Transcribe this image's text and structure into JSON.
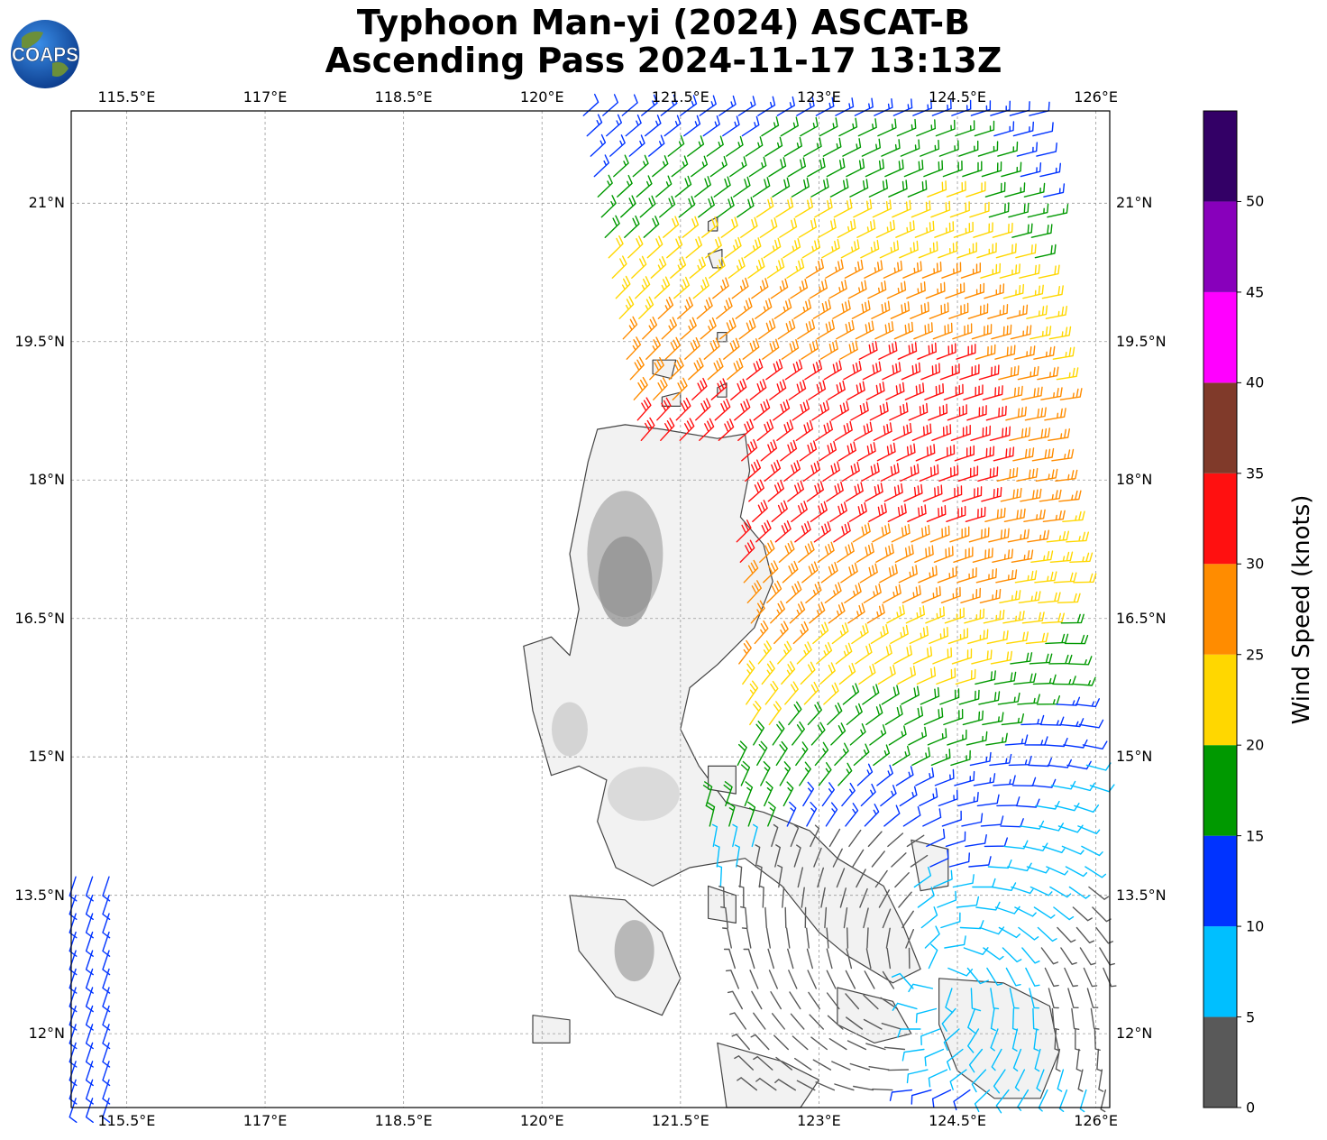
{
  "title": {
    "line1": "Typhoon Man-yi (2024) ASCAT-B",
    "line2": "Ascending Pass 2024-11-17 13:13Z"
  },
  "logo": {
    "text": "COAPS",
    "icon": "globe-icon"
  },
  "map": {
    "lon_range": [
      114.9,
      126.15
    ],
    "lat_range": [
      11.2,
      22.0
    ],
    "lon_ticks": [
      "115.5°E",
      "117°E",
      "118.5°E",
      "120°E",
      "121.5°E",
      "123°E",
      "124.5°E",
      "126°E"
    ],
    "lat_ticks": [
      "21°N",
      "19.5°N",
      "18°N",
      "16.5°N",
      "15°N",
      "13.5°N",
      "12°N"
    ],
    "grid": true,
    "land_color": "#f2f2f2",
    "coast_color": "#444444"
  },
  "colorbar": {
    "title": "Wind Speed (knots)",
    "bins": [
      {
        "min": 0,
        "max": 5,
        "color": "#595959"
      },
      {
        "min": 5,
        "max": 10,
        "color": "#00bfff"
      },
      {
        "min": 10,
        "max": 15,
        "color": "#0033ff"
      },
      {
        "min": 15,
        "max": 20,
        "color": "#009900"
      },
      {
        "min": 20,
        "max": 25,
        "color": "#ffd700"
      },
      {
        "min": 25,
        "max": 30,
        "color": "#ff8c00"
      },
      {
        "min": 30,
        "max": 35,
        "color": "#ff1010"
      },
      {
        "min": 35,
        "max": 40,
        "color": "#803a2a"
      },
      {
        "min": 40,
        "max": 45,
        "color": "#ff00ff"
      },
      {
        "min": 45,
        "max": 50,
        "color": "#8800bb"
      },
      {
        "min": 50,
        "max": 55,
        "color": "#330066"
      }
    ],
    "labels": [
      "0",
      "5",
      "10",
      "15",
      "20",
      "25",
      "30",
      "35",
      "40",
      "45",
      "50"
    ]
  }
}
